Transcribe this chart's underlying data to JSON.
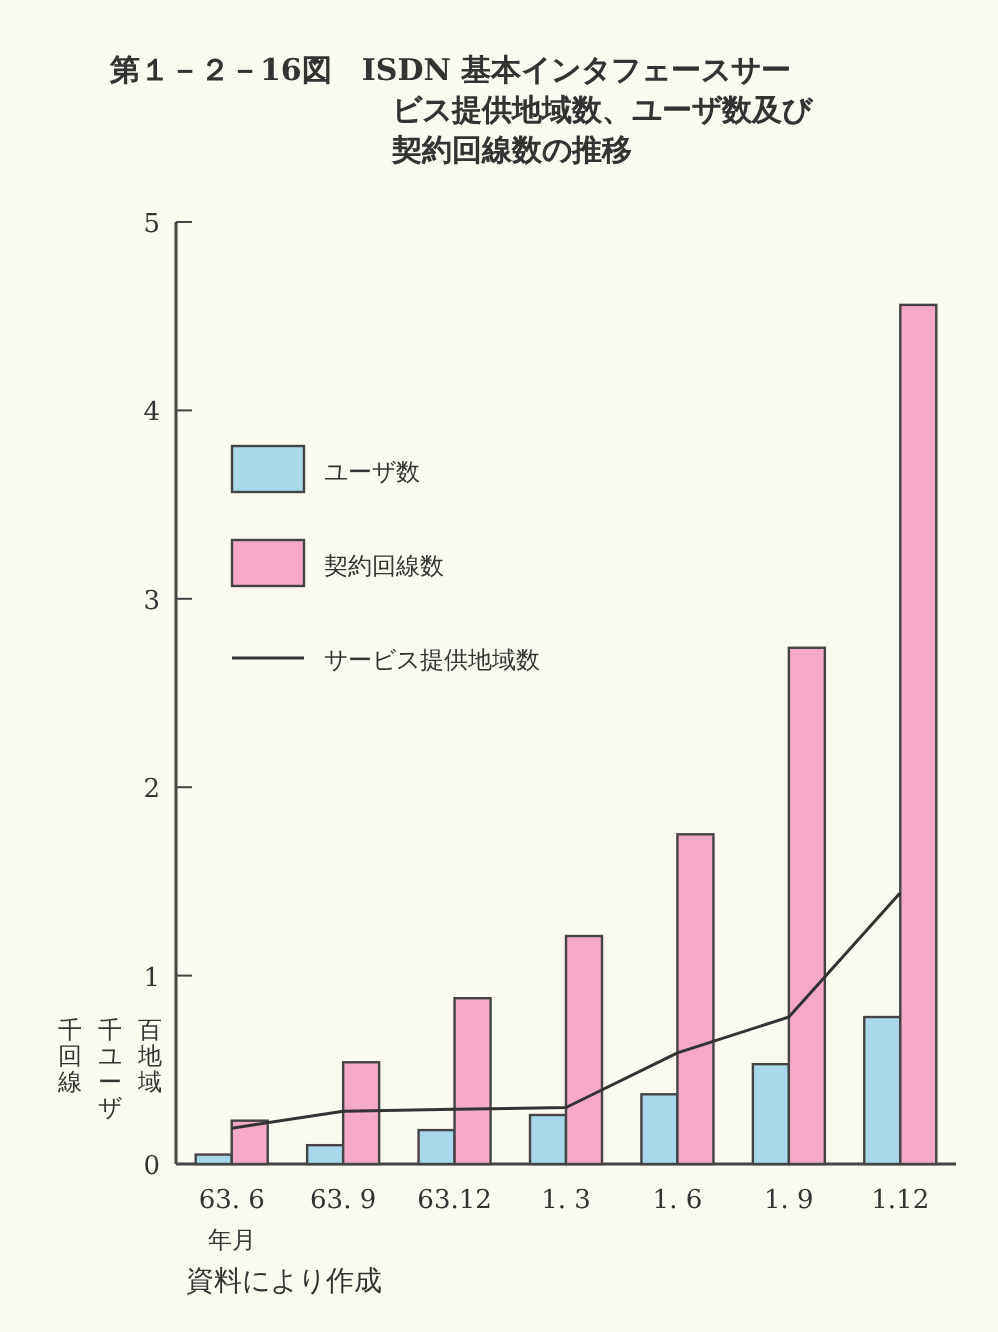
{
  "chart_data": {
    "type": "bar",
    "title": "第１－２－16図　ISDN 基本インタフェースサービス提供地域数、ユーザ数及び契約回線数の推移",
    "categories": [
      "63. 6",
      "63. 9",
      "63.12",
      "1. 3",
      "1. 6",
      "1. 9",
      "1.12"
    ],
    "xlabel": "年月",
    "series": [
      {
        "name": "ユーザ数",
        "color": "#a8d8ea",
        "values": [
          0.05,
          0.1,
          0.18,
          0.26,
          0.37,
          0.53,
          0.78
        ]
      },
      {
        "name": "契約回線数",
        "color": "#f5a9c9",
        "values": [
          0.23,
          0.54,
          0.88,
          1.21,
          1.75,
          2.74,
          4.56
        ]
      },
      {
        "name": "サービス提供地域数",
        "type": "line",
        "color": "#333333",
        "values": [
          0.19,
          0.28,
          0.29,
          0.3,
          0.59,
          0.78,
          1.44
        ]
      }
    ],
    "ylim": [
      0,
      5
    ],
    "yticks": [
      0,
      1,
      2,
      3,
      4,
      5
    ],
    "grid": false,
    "legend": "top left",
    "annotations": [
      "百地域",
      "千ユーザ",
      "千回線",
      "資料により作成"
    ]
  }
}
